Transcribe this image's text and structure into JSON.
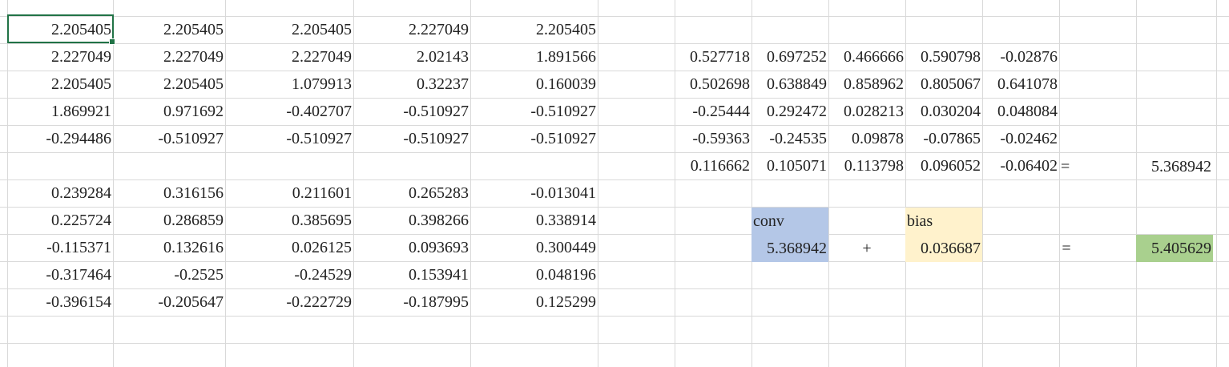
{
  "sheet": {
    "grid_color": "#d9d9d9",
    "selection_color": "#217346",
    "input_matrix": [
      [
        "2.205405",
        "2.205405",
        "2.205405",
        "2.227049",
        "2.205405"
      ],
      [
        "2.227049",
        "2.227049",
        "2.227049",
        "2.02143",
        "1.891566"
      ],
      [
        "2.205405",
        "2.205405",
        "1.079913",
        "0.32237",
        "0.160039"
      ],
      [
        "1.869921",
        "0.971692",
        "-0.402707",
        "-0.510927",
        "-0.510927"
      ],
      [
        "-0.294486",
        "-0.510927",
        "-0.510927",
        "-0.510927",
        "-0.510927"
      ]
    ],
    "kernel_matrix": [
      [
        "0.239284",
        "0.316156",
        "0.211601",
        "0.265283",
        "-0.013041"
      ],
      [
        "0.225724",
        "0.286859",
        "0.385695",
        "0.398266",
        "0.338914"
      ],
      [
        "-0.115371",
        "0.132616",
        "0.026125",
        "0.093693",
        "0.300449"
      ],
      [
        "-0.317464",
        "-0.2525",
        "-0.24529",
        "0.153941",
        "0.048196"
      ],
      [
        "-0.396154",
        "-0.205647",
        "-0.222729",
        "-0.187995",
        "0.125299"
      ]
    ],
    "product_matrix": [
      [
        "0.527718",
        "0.697252",
        "0.466666",
        "0.590798",
        "-0.02876"
      ],
      [
        "0.502698",
        "0.638849",
        "0.858962",
        "0.805067",
        "0.641078"
      ],
      [
        "-0.25444",
        "0.292472",
        "0.028213",
        "0.030204",
        "0.048084"
      ],
      [
        "-0.59363",
        "-0.24535",
        "0.09878",
        "-0.07865",
        "-0.02462"
      ],
      [
        "0.116662",
        "0.105071",
        "0.113798",
        "0.096052",
        "-0.06402"
      ]
    ],
    "sum": {
      "equals": "=",
      "value": "5.368942"
    },
    "conv": {
      "label": "conv",
      "value": "5.368942",
      "color": "#b4c7e7"
    },
    "plus": "+",
    "bias": {
      "label": "bias",
      "value": "0.036687",
      "color": "#fff2cc"
    },
    "result": {
      "equals": "=",
      "value": "5.405629",
      "color": "#a9d08e"
    }
  }
}
